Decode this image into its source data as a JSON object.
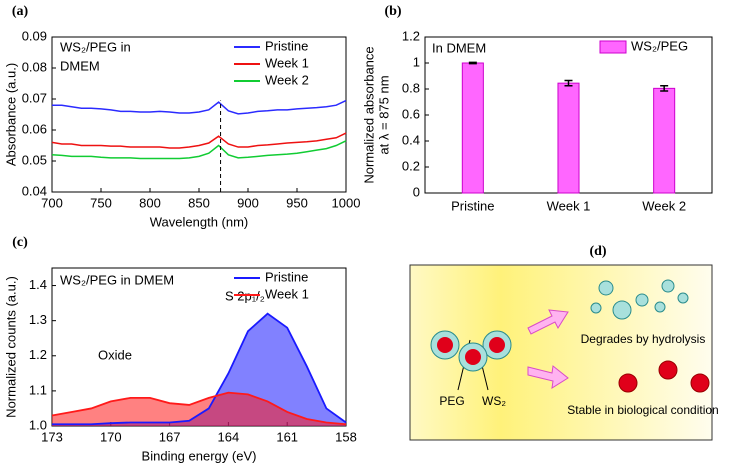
{
  "chart_data": [
    {
      "type": "line",
      "panel_label": "(a)",
      "xlabel": "Wavelength (nm)",
      "ylabel": "Absorbance (a.u.)",
      "annotations": [
        "WS₂/PEG in",
        "DMEM"
      ],
      "legend": "upper right",
      "x": [
        700,
        710,
        720,
        730,
        740,
        750,
        760,
        770,
        780,
        790,
        800,
        810,
        820,
        830,
        840,
        850,
        860,
        870,
        880,
        890,
        900,
        910,
        920,
        930,
        940,
        950,
        960,
        970,
        980,
        990,
        1000
      ],
      "series": [
        {
          "name": "Pristine",
          "color": "#2b2bff",
          "values": [
            0.068,
            0.068,
            0.0675,
            0.067,
            0.067,
            0.0668,
            0.0665,
            0.066,
            0.066,
            0.0658,
            0.0658,
            0.066,
            0.0658,
            0.0655,
            0.0655,
            0.0658,
            0.0665,
            0.069,
            0.0662,
            0.0652,
            0.0655,
            0.066,
            0.0662,
            0.0665,
            0.0665,
            0.0668,
            0.067,
            0.0672,
            0.0675,
            0.068,
            0.0695
          ]
        },
        {
          "name": "Week 1",
          "color": "#ee1111",
          "values": [
            0.056,
            0.0555,
            0.0555,
            0.055,
            0.055,
            0.055,
            0.0548,
            0.0548,
            0.0545,
            0.0545,
            0.0545,
            0.0545,
            0.0542,
            0.0542,
            0.0545,
            0.055,
            0.0558,
            0.058,
            0.0555,
            0.0545,
            0.0545,
            0.055,
            0.0552,
            0.0555,
            0.0558,
            0.056,
            0.0562,
            0.0565,
            0.057,
            0.0575,
            0.059
          ]
        },
        {
          "name": "Week 2",
          "color": "#11cc33",
          "values": [
            0.052,
            0.0518,
            0.0515,
            0.0515,
            0.0515,
            0.0512,
            0.051,
            0.051,
            0.051,
            0.0508,
            0.0508,
            0.0508,
            0.0508,
            0.0508,
            0.051,
            0.0515,
            0.0525,
            0.055,
            0.052,
            0.051,
            0.0512,
            0.0515,
            0.0518,
            0.052,
            0.0522,
            0.0525,
            0.053,
            0.0535,
            0.054,
            0.055,
            0.0565
          ]
        }
      ],
      "vline": 872,
      "xlim": [
        700,
        1000
      ],
      "xticks": [
        700,
        750,
        800,
        850,
        900,
        950,
        1000
      ],
      "ylim": [
        0.04,
        0.09
      ],
      "yticks": [
        0.04,
        0.05,
        0.06,
        0.07,
        0.08,
        0.09
      ]
    },
    {
      "type": "bar",
      "panel_label": "(b)",
      "ylabel": [
        "Normalized absorbance",
        "at λ = 875 nm"
      ],
      "annotations": [
        "In DMEM"
      ],
      "legend": "upper right",
      "categories": [
        "Pristine",
        "Week 1",
        "Week 2"
      ],
      "series": [
        {
          "name": "WS₂/PEG",
          "color": "#ff66ff",
          "values": [
            1,
            0.845,
            0.805
          ],
          "errors": [
            0.005,
            0.02,
            0.02
          ]
        }
      ],
      "ylim": [
        0,
        1.2
      ],
      "yticks": [
        0,
        0.2,
        0.4,
        0.6,
        0.8,
        1,
        1.2
      ]
    },
    {
      "type": "area",
      "panel_label": "(c)",
      "xlabel": "Binding energy (eV)",
      "ylabel": "Normalized counts (a.u.)",
      "annotations": [
        "WS₂/PEG in DMEM",
        "Oxide",
        "S 2p₁/₂"
      ],
      "legend": "upper right",
      "x": [
        173,
        172,
        171,
        170,
        169,
        168,
        167,
        166,
        165,
        164,
        163,
        162,
        161,
        160,
        159,
        158
      ],
      "series": [
        {
          "name": "Pristine",
          "color": "#1a1aff",
          "values": [
            1.005,
            1.005,
            1.005,
            1.008,
            1.01,
            1.01,
            1.01,
            1.015,
            1.05,
            1.15,
            1.27,
            1.32,
            1.28,
            1.17,
            1.05,
            1.01
          ]
        },
        {
          "name": "Week 1",
          "color": "#ff1a1a",
          "values": [
            1.03,
            1.04,
            1.05,
            1.07,
            1.08,
            1.08,
            1.065,
            1.06,
            1.08,
            1.095,
            1.09,
            1.07,
            1.04,
            1.02,
            1.01,
            1.005
          ]
        }
      ],
      "xlim": [
        173,
        158
      ],
      "xticks": [
        173,
        170,
        167,
        164,
        161,
        158
      ],
      "ylim": [
        1.0,
        1.45
      ],
      "yticks": [
        {
          "value": 1.0,
          "label": "1.0"
        },
        1.1,
        1.2,
        1.3,
        1.4
      ]
    }
  ],
  "diagram": {
    "panel_label": "(d)",
    "labels": [
      "Degrades by hydrolysis",
      "Stable in biological condition",
      "PEG",
      "WS₂"
    ]
  }
}
